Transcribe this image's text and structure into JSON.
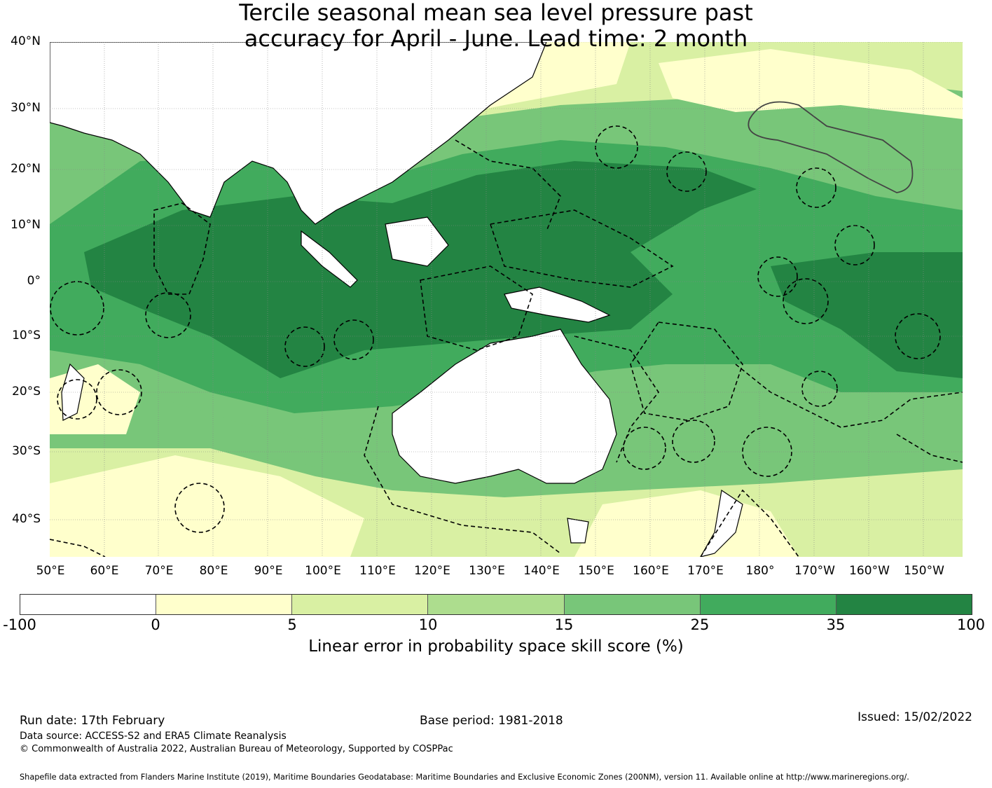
{
  "title": {
    "line1": "Tercile seasonal mean sea level pressure past",
    "line2": "accuracy for April - June. Lead time: 2 month"
  },
  "map": {
    "lat_labels": [
      "40°N",
      "30°N",
      "20°N",
      "10°N",
      "0°",
      "10°S",
      "20°S",
      "30°S",
      "40°S"
    ],
    "lon_labels": [
      "50°E",
      "60°E",
      "70°E",
      "80°E",
      "90°E",
      "100°E",
      "110°E",
      "120°E",
      "130°E",
      "140°E",
      "150°E",
      "160°E",
      "170°E",
      "180°",
      "170°W",
      "160°W",
      "150°W"
    ],
    "lat_range": [
      -46,
      40
    ],
    "lon_range": [
      49,
      217
    ],
    "ocean_background_color": "#41ab5d",
    "land_color": "#ffffff",
    "coastline_color": "#000000",
    "eez_boundary_style": "dashed"
  },
  "colorbar": {
    "ticks": [
      "-100",
      "0",
      "5",
      "10",
      "15",
      "25",
      "35",
      "100"
    ],
    "colors": [
      "#ffffff",
      "#ffffcc",
      "#d9f0a3",
      "#addd8e",
      "#78c679",
      "#41ab5d",
      "#238443"
    ],
    "label": "Linear error in probability space skill score (%)"
  },
  "footer": {
    "run_date": "Run date: 17th February",
    "base_period": "Base period: 1981-2018",
    "issued": "Issued: 15/02/2022",
    "data_source": "Data source: ACCESS-S2 and ERA5 Climate Reanalysis",
    "copyright": "© Commonwealth of Australia 2022, Australian Bureau of Meteorology, Supported by COSPPac",
    "shapefile": "Shapefile data extracted from Flanders Marine Institute (2019), Maritime Boundaries Geodatabase: Maritime Boundaries and Exclusive Economic Zones (200NM), version 11. Available online at http://www.marineregions.org/."
  }
}
